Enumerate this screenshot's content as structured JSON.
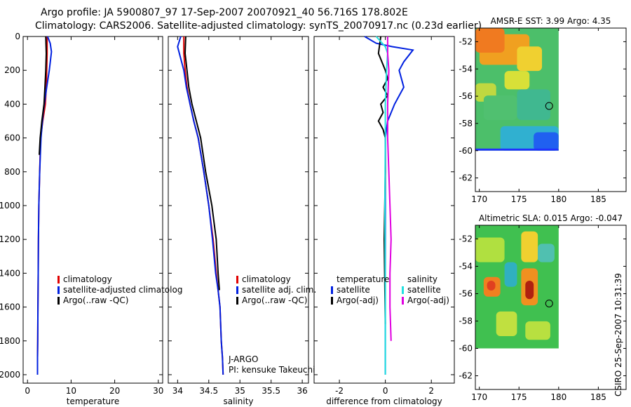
{
  "header": {
    "line1": "Argo profile: JA 5900807_97 17-Sep-2007 20070921_40 56.716S 178.802E",
    "line2": "Climatology: CARS2006. Satellite-adjusted climatology: synTS_20070917.nc (0.23d earlier)"
  },
  "side_label": "CSIRO 25-Sep-2007 10:31:39",
  "colors": {
    "climatology": "#e00000",
    "satellite": "#0020e0",
    "argo": "#000000",
    "cyan": "#20e0e0",
    "magenta": "#e000e0",
    "axis": "#000000"
  },
  "chart_data": [
    {
      "type": "line",
      "title": "",
      "xlabel": "temperature",
      "ylabel": "",
      "xlim": [
        -1,
        31
      ],
      "ylim": [
        2050,
        0
      ],
      "y_reversed": true,
      "xticks": [
        "0",
        "10",
        "20",
        "30"
      ],
      "yticks": [
        "0",
        "200",
        "400",
        "600",
        "800",
        "1000",
        "1200",
        "1400",
        "1600",
        "1800",
        "2000"
      ],
      "legend": [
        "climatology",
        "satellite-adjusted climatolog",
        "Argo(..raw -QC)"
      ],
      "legend_position": "lower-right",
      "annotations": [],
      "series": [
        {
          "name": "climatology",
          "color_key": "climatology",
          "x": [
            4.5,
            4.5,
            4.4,
            4.3,
            4.1,
            3.5,
            3.0,
            2.8,
            2.6,
            2.5,
            2.45,
            2.4,
            2.35,
            2.3,
            2.3
          ],
          "y": [
            0,
            100,
            200,
            300,
            400,
            500,
            600,
            800,
            1000,
            1200,
            1400,
            1600,
            1800,
            1900,
            2000
          ]
        },
        {
          "name": "satellite-adjusted climatology",
          "color_key": "satellite",
          "x": [
            4.6,
            5.2,
            5.5,
            5.0,
            4.4,
            3.6,
            3.1,
            2.8,
            2.6,
            2.5,
            2.45,
            2.4,
            2.35,
            2.3,
            2.3
          ],
          "y": [
            0,
            40,
            90,
            200,
            300,
            450,
            600,
            800,
            1000,
            1200,
            1400,
            1600,
            1800,
            1900,
            2000
          ]
        },
        {
          "name": "Argo(..raw -QC)",
          "color_key": "argo",
          "x": [
            4.2,
            4.3,
            4.2,
            4.0,
            3.8,
            3.3,
            2.9,
            2.7
          ],
          "y": [
            0,
            100,
            200,
            300,
            400,
            500,
            600,
            700
          ]
        }
      ]
    },
    {
      "type": "line",
      "title": "",
      "xlabel": "salinity",
      "ylabel": "",
      "xlim": [
        33.85,
        36.1
      ],
      "ylim": [
        2050,
        0
      ],
      "y_reversed": true,
      "xticks": [
        "34",
        "34.5",
        "35",
        "35.5",
        "36"
      ],
      "yticks": [],
      "legend": [
        "climatology",
        "satellite adj. clim.",
        "Argo(..raw -QC)"
      ],
      "legend_position": "lower-right",
      "annotations": [
        "J-ARGO",
        "PI: kensuke Takeuchi"
      ],
      "series": [
        {
          "name": "climatology",
          "color_key": "climatology",
          "x": [
            34.1,
            34.1,
            34.12,
            34.15,
            34.2,
            34.26,
            34.33,
            34.42,
            34.5,
            34.57,
            34.62,
            34.65,
            34.68,
            34.7,
            34.72,
            34.73
          ],
          "y": [
            0,
            100,
            200,
            300,
            400,
            500,
            600,
            800,
            1000,
            1200,
            1400,
            1500,
            1600,
            1800,
            1900,
            2000
          ]
        },
        {
          "name": "satellite adj. clim.",
          "color_key": "satellite",
          "x": [
            34.05,
            34.0,
            34.1,
            34.14,
            34.2,
            34.26,
            34.33,
            34.42,
            34.5,
            34.56,
            34.61,
            34.65,
            34.68,
            34.7,
            34.72,
            34.73
          ],
          "y": [
            0,
            60,
            200,
            300,
            400,
            500,
            600,
            800,
            1000,
            1200,
            1400,
            1500,
            1600,
            1800,
            1900,
            2000
          ]
        },
        {
          "name": "Argo(..raw -QC)",
          "color_key": "argo",
          "x": [
            34.13,
            34.12,
            34.15,
            34.18,
            34.23,
            34.3,
            34.37,
            34.45,
            34.55,
            34.62,
            34.65,
            34.67
          ],
          "y": [
            0,
            100,
            200,
            300,
            400,
            500,
            600,
            800,
            1000,
            1200,
            1400,
            1500
          ]
        }
      ]
    },
    {
      "type": "line",
      "title": "",
      "xlabel": "difference from climatology",
      "ylabel": "",
      "xlim": [
        -3.1,
        3.0
      ],
      "ylim": [
        2050,
        0
      ],
      "y_reversed": true,
      "xticks": [
        "-2",
        "0",
        "2"
      ],
      "yticks": [],
      "legend": [
        "temperature",
        "satellite",
        "Argo(-adj)",
        "salinity",
        "satellite",
        "Argo(-adj)"
      ],
      "legend_position": "lower-center",
      "annotations": [],
      "series": [
        {
          "name": "satellite",
          "group": "temperature",
          "color_key": "satellite",
          "x": [
            -0.9,
            -0.4,
            0.3,
            1.2,
            0.8,
            0.6,
            0.8,
            0.4,
            0.1,
            0.0,
            0.0,
            0.0,
            0.0
          ],
          "y": [
            0,
            40,
            60,
            80,
            150,
            200,
            300,
            400,
            500,
            600,
            1000,
            1500,
            2000
          ]
        },
        {
          "name": "Argo(-adj)",
          "group": "temperature",
          "color_key": "argo",
          "x": [
            -0.2,
            -0.3,
            0.0,
            0.1,
            -0.1,
            0.1,
            -0.2,
            -0.1,
            -0.3,
            -0.1,
            0.0,
            0.0,
            -0.05,
            0.0
          ],
          "y": [
            0,
            100,
            200,
            250,
            300,
            350,
            400,
            450,
            500,
            550,
            600,
            800,
            1200,
            1700
          ]
        },
        {
          "name": "satellite",
          "group": "salinity",
          "color_key": "cyan",
          "x": [
            -0.4,
            0.0,
            0.1,
            0.05,
            0.0,
            0.0,
            -0.02,
            0.0,
            0.0
          ],
          "y": [
            0,
            60,
            100,
            200,
            400,
            600,
            1000,
            1500,
            2000
          ]
        },
        {
          "name": "Argo(-adj)",
          "group": "salinity",
          "color_key": "magenta",
          "x": [
            0.1,
            0.1,
            0.15,
            0.1,
            0.1,
            0.15,
            0.2,
            0.25,
            0.2,
            0.2,
            0.25
          ],
          "y": [
            0,
            100,
            200,
            400,
            600,
            800,
            1000,
            1200,
            1400,
            1600,
            1800
          ]
        }
      ]
    },
    {
      "type": "heatmap",
      "title": "AMSR-E SST: 3.99 Argo: 4.35",
      "xlabel": "",
      "ylabel": "",
      "xlim": [
        169.5,
        188.5
      ],
      "ylim": [
        -63,
        -51
      ],
      "xticks": [
        "170",
        "175",
        "180",
        "185"
      ],
      "yticks": [
        "-52",
        "-54",
        "-56",
        "-58",
        "-60",
        "-62"
      ],
      "data_extent": {
        "lon": [
          169.5,
          180
        ],
        "lat": [
          -60,
          -51
        ]
      },
      "marker": {
        "lon": 178.802,
        "lat": -56.716
      }
    },
    {
      "type": "heatmap",
      "title": "Altimetric SLA: 0.015 Argo: -0.047",
      "xlabel": "",
      "ylabel": "",
      "xlim": [
        169.5,
        188.5
      ],
      "ylim": [
        -63,
        -51
      ],
      "xticks": [
        "170",
        "175",
        "180",
        "185"
      ],
      "yticks": [
        "-52",
        "-54",
        "-56",
        "-58",
        "-60",
        "-62"
      ],
      "data_extent": {
        "lon": [
          169.5,
          180
        ],
        "lat": [
          -60,
          -51
        ]
      },
      "marker": {
        "lon": 178.802,
        "lat": -56.716
      }
    }
  ]
}
